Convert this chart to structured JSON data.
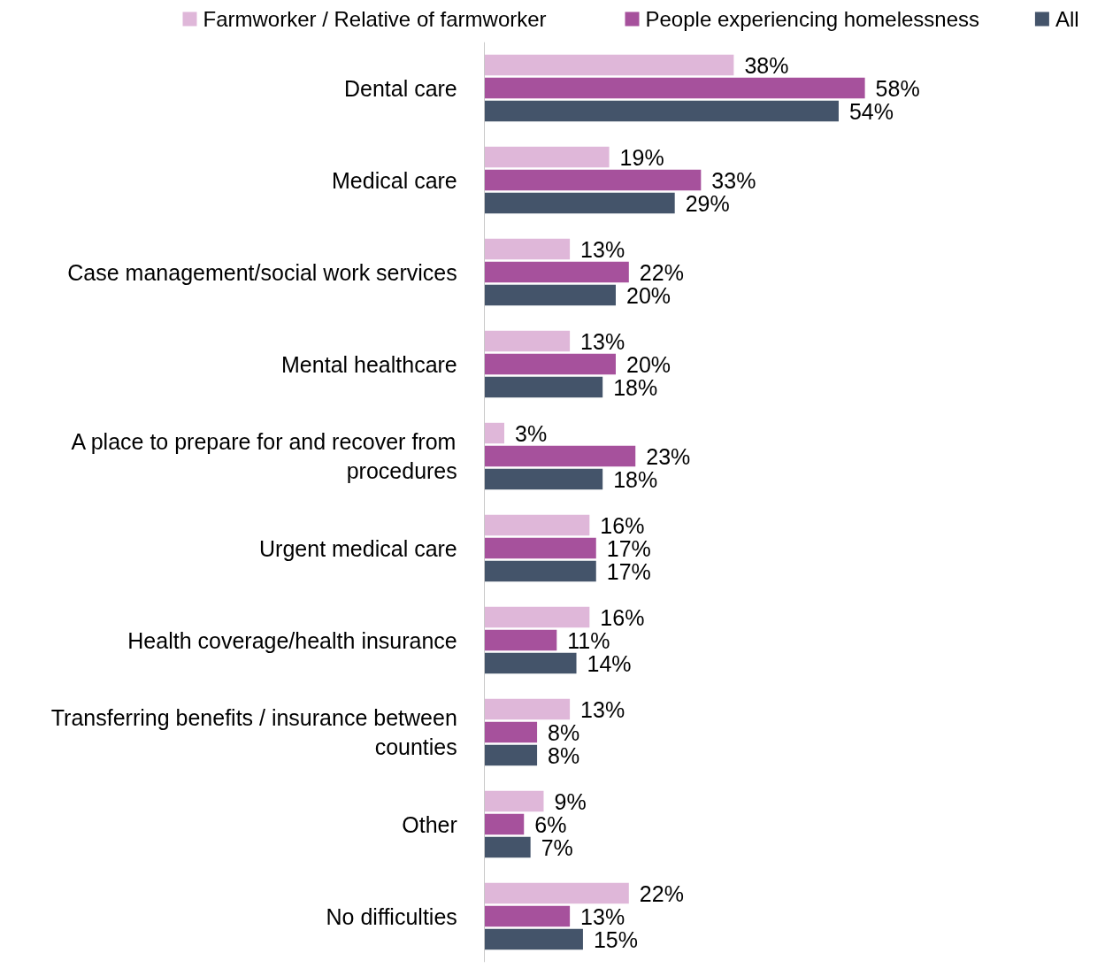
{
  "chart_data": {
    "type": "bar",
    "orientation": "horizontal",
    "legend": "top",
    "grid": false,
    "categories": [
      "Dental care",
      "Medical care",
      "Case management/social work services",
      "Mental healthcare",
      "A place to prepare for and recover from\nprocedures",
      "Urgent medical care",
      "Health coverage/health insurance",
      "Transferring benefits / insurance between\ncounties",
      "Other",
      "No difficulties"
    ],
    "series": [
      {
        "name": "Farmworker / Relative of farmworker",
        "color": "#dfb7d9",
        "values": [
          38,
          19,
          13,
          13,
          3,
          16,
          16,
          13,
          9,
          22
        ],
        "value_labels": [
          "38%",
          "19%",
          "13%",
          "13%",
          "3%",
          "16%",
          "16%",
          "13%",
          "9%",
          "22%"
        ]
      },
      {
        "name": "People experiencing homelessness",
        "color": "#a6519c",
        "values": [
          58,
          33,
          22,
          20,
          23,
          17,
          11,
          8,
          6,
          13
        ],
        "value_labels": [
          "58%",
          "33%",
          "22%",
          "20%",
          "23%",
          "17%",
          "11%",
          "8%",
          "6%",
          "13%"
        ]
      },
      {
        "name": "All",
        "color": "#44546a",
        "values": [
          54,
          29,
          20,
          18,
          18,
          17,
          14,
          8,
          7,
          15
        ],
        "value_labels": [
          "54%",
          "29%",
          "20%",
          "18%",
          "18%",
          "17%",
          "14%",
          "8%",
          "7%",
          "15%"
        ]
      }
    ]
  }
}
